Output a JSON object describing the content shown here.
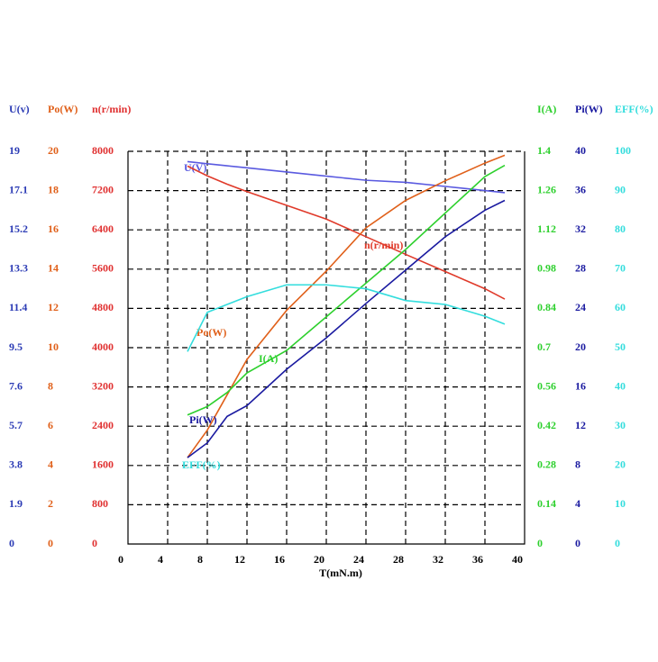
{
  "chart_data": {
    "type": "line",
    "x_label": "T(mN.m)",
    "xlim": [
      0,
      40
    ],
    "xticks": [
      0,
      4,
      8,
      12,
      16,
      20,
      24,
      28,
      32,
      36,
      40
    ],
    "grid": true,
    "x": [
      6,
      8,
      10,
      12,
      16,
      20,
      24,
      28,
      32,
      36,
      38
    ],
    "y_axes": [
      {
        "title": "U(v)",
        "color": "#2b3bb5",
        "lim": [
          0,
          19
        ],
        "ticks": [
          0,
          1.9,
          3.8,
          5.7,
          7.6,
          9.5,
          11.4,
          13.3,
          15.2,
          17.1,
          19
        ]
      },
      {
        "title": "Po(W)",
        "color": "#e0601a",
        "lim": [
          0,
          20
        ],
        "ticks": [
          0,
          2,
          4,
          6,
          8,
          10,
          12,
          14,
          16,
          18,
          20
        ]
      },
      {
        "title": "n(r/min)",
        "color": "#e03030",
        "lim": [
          0,
          8000
        ],
        "ticks": [
          0,
          800,
          1600,
          2400,
          3200,
          4000,
          4800,
          5600,
          6400,
          7200,
          8000
        ]
      },
      {
        "title": "I(A)",
        "color": "#2ed02e",
        "lim": [
          0,
          1.4
        ],
        "ticks": [
          0,
          0.14,
          0.28,
          0.42,
          0.56,
          0.7,
          0.84,
          0.98,
          1.12,
          1.26,
          1.4
        ]
      },
      {
        "title": "Pi(W)",
        "color": "#1a1aa0",
        "lim": [
          0,
          40
        ],
        "ticks": [
          0,
          4,
          8,
          12,
          16,
          20,
          24,
          28,
          32,
          36,
          40
        ]
      },
      {
        "title": "EFF(%)",
        "color": "#33dddd",
        "lim": [
          0,
          100
        ],
        "ticks": [
          0,
          10,
          20,
          30,
          40,
          50,
          60,
          70,
          80,
          90,
          100
        ]
      }
    ],
    "series": [
      {
        "name": "U(V)",
        "color": "#5a5ae0",
        "axis": 0,
        "values": [
          18.5,
          18.4,
          18.3,
          18.2,
          18.0,
          17.8,
          17.6,
          17.5,
          17.3,
          17.1,
          17.0
        ]
      },
      {
        "name": "n(r/min)",
        "color": "#e03a2a",
        "axis": 2,
        "values": [
          7700,
          7500,
          7330,
          7180,
          6900,
          6620,
          6260,
          5900,
          5550,
          5200,
          4990
        ]
      },
      {
        "name": "Po(W)",
        "color": "#e0601a",
        "axis": 1,
        "values": [
          4.4,
          5.8,
          7.6,
          9.4,
          11.9,
          13.9,
          16.1,
          17.5,
          18.5,
          19.4,
          19.8
        ]
      },
      {
        "name": "I(A)",
        "color": "#2ed02e",
        "axis": 3,
        "values": [
          0.46,
          0.49,
          0.54,
          0.61,
          0.69,
          0.81,
          0.93,
          1.05,
          1.18,
          1.31,
          1.35
        ]
      },
      {
        "name": "Pi(W)",
        "color": "#1a1aa0",
        "axis": 4,
        "values": [
          8.8,
          10.3,
          13.0,
          14.1,
          17.8,
          21.0,
          24.5,
          27.9,
          31.3,
          34.0,
          35.0
        ]
      },
      {
        "name": "EFF(%)",
        "color": "#33dddd",
        "axis": 5,
        "values": [
          49,
          59,
          61,
          63,
          66,
          66,
          65,
          62,
          61,
          58,
          56
        ]
      }
    ]
  }
}
